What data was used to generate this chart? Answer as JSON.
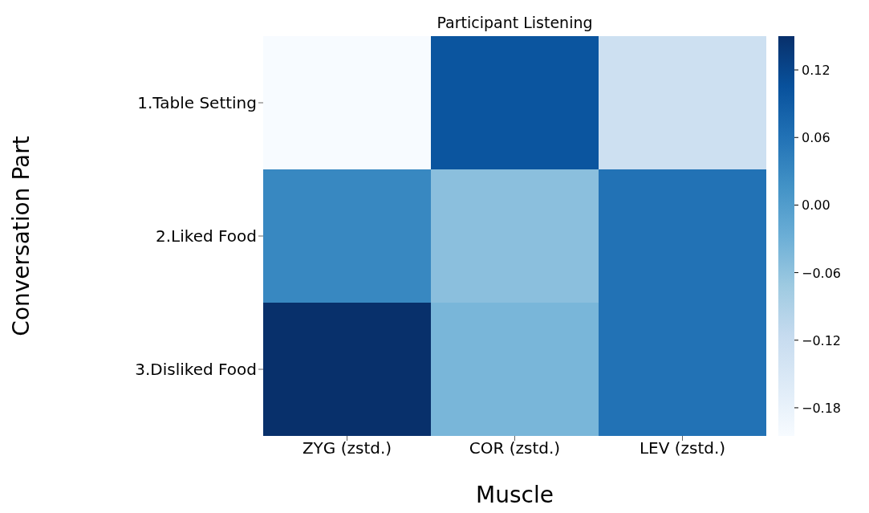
{
  "chart_data": {
    "type": "heatmap",
    "title": "Participant Listening",
    "xlabel": "Muscle",
    "ylabel": "Conversation Part",
    "categories": [
      "ZYG (zstd.)",
      "COR (zstd.)",
      "LEV (zstd.)"
    ],
    "y_categories": [
      "1.Table Setting",
      "2.Liked Food",
      "3.Disliked Food"
    ],
    "cells": [
      [
        -0.205,
        0.1,
        -0.13
      ],
      [
        0.03,
        -0.055,
        0.06
      ],
      [
        0.15,
        -0.04,
        0.06
      ]
    ],
    "clim": [
      -0.205,
      0.15
    ],
    "cticks": [
      {
        "value": -0.18,
        "label": "−0.18"
      },
      {
        "value": -0.12,
        "label": "−0.12"
      },
      {
        "value": -0.06,
        "label": "−0.06"
      },
      {
        "value": 0,
        "label": "0.00"
      },
      0.06,
      0.12
    ]
  }
}
